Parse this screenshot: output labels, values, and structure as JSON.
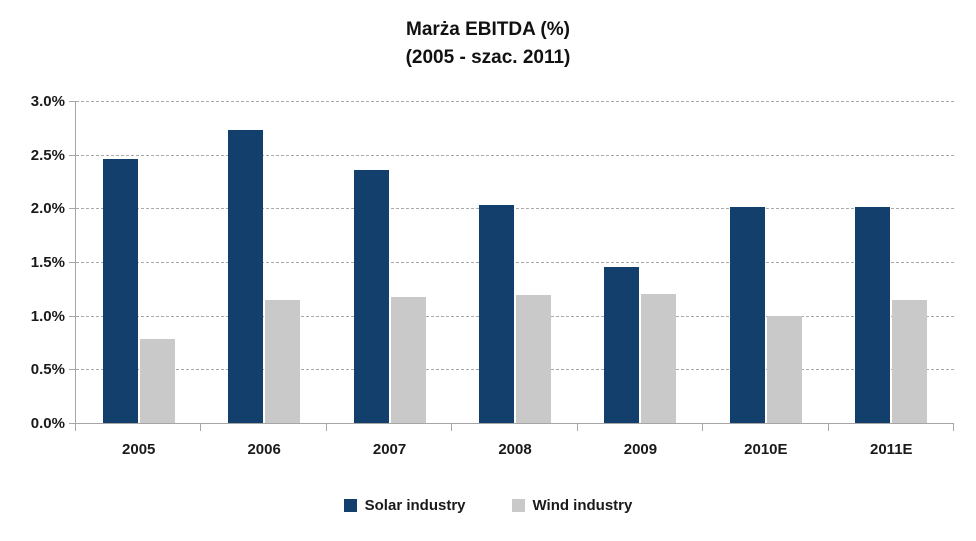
{
  "chart_data": {
    "type": "bar",
    "title": "Marża EBITDA (%)",
    "subtitle": "(2005 - szac. 2011)",
    "categories": [
      "2005",
      "2006",
      "2007",
      "2008",
      "2009",
      "2010E",
      "2011E"
    ],
    "series": [
      {
        "name": "Solar industry",
        "color": "#123F6B",
        "values": [
          2.46,
          2.73,
          2.36,
          2.03,
          1.45,
          2.01,
          2.01
        ]
      },
      {
        "name": "Wind industry",
        "color": "#C9C9C9",
        "values": [
          0.78,
          1.15,
          1.17,
          1.19,
          1.2,
          1.0,
          1.15
        ]
      }
    ],
    "ylim": [
      0,
      3.0
    ],
    "ytick_step": 0.5,
    "ytick_labels": [
      "0.0%",
      "0.5%",
      "1.0%",
      "1.5%",
      "2.0%",
      "2.5%",
      "3.0%"
    ],
    "grid": "horizontal-dashed",
    "legend_position": "bottom",
    "colors": {
      "axis": "#A6A6A6",
      "gridline": "#A9A9A9",
      "text": "#1A1A1A"
    }
  }
}
